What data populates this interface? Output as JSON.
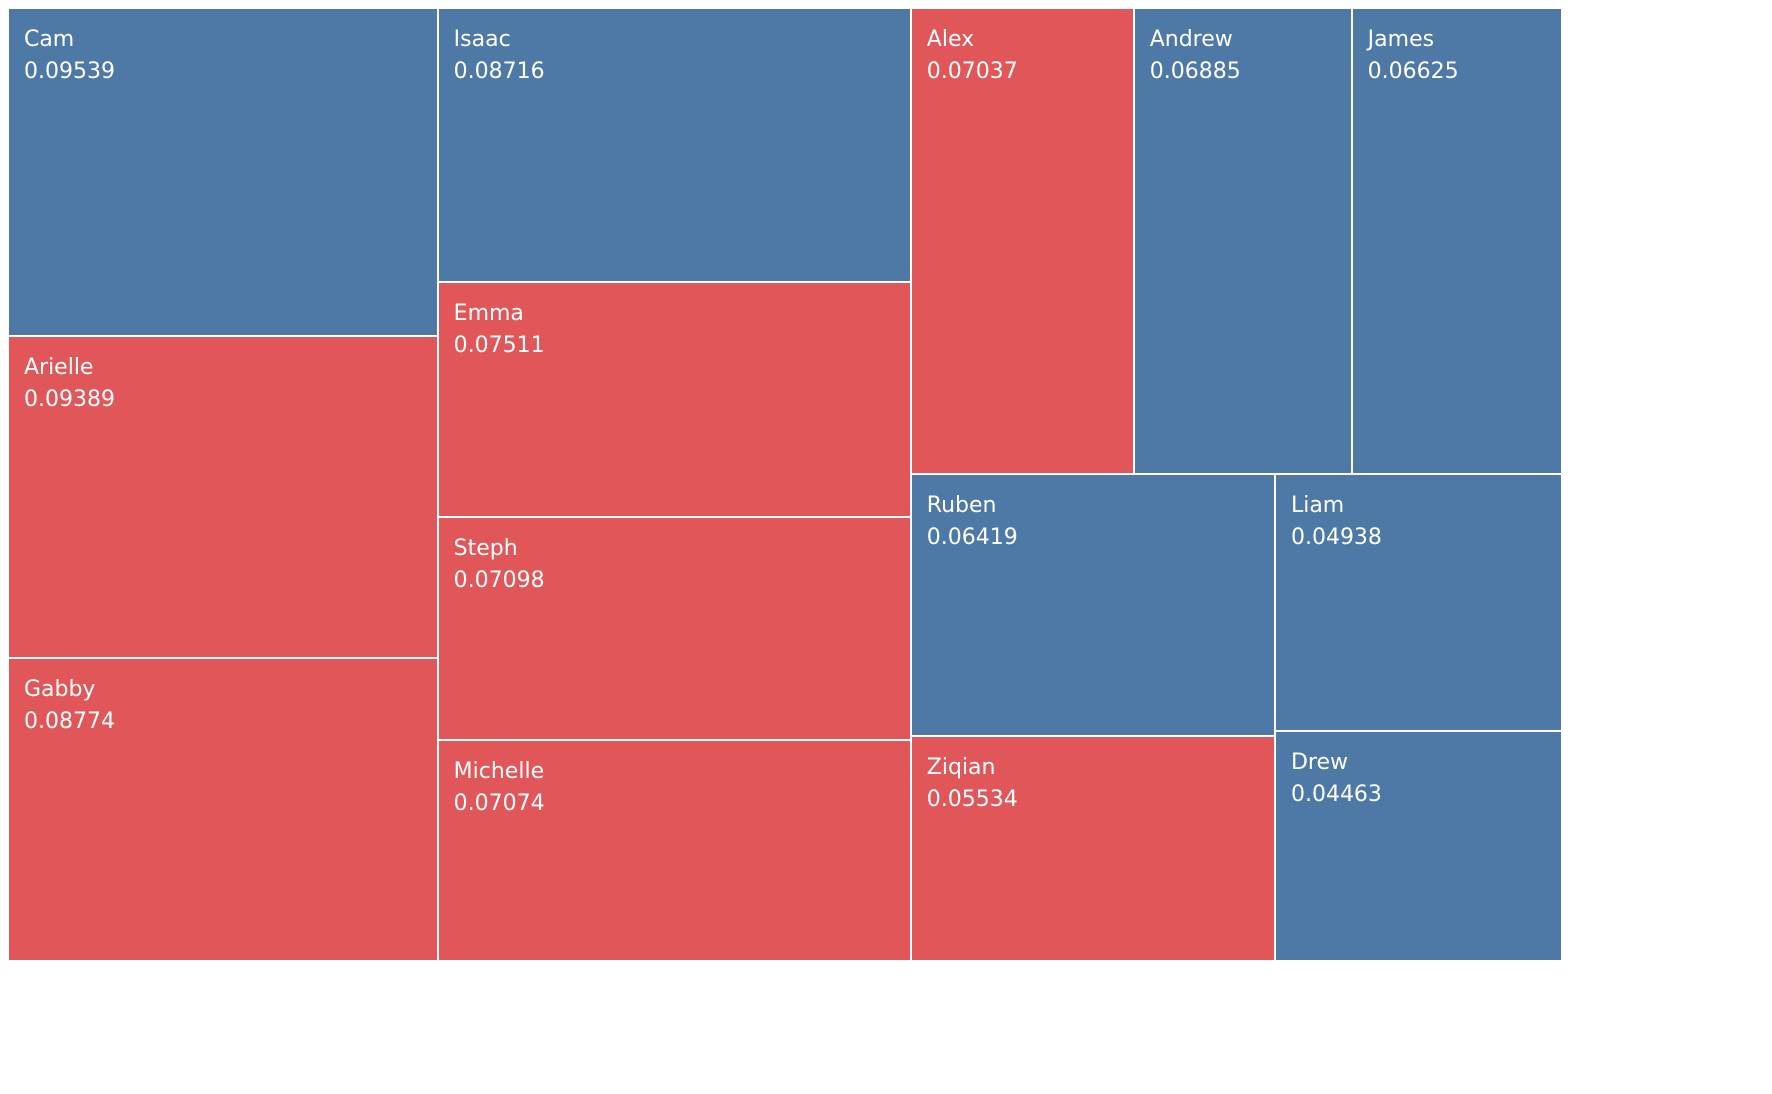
{
  "chart_data": {
    "type": "treemap",
    "title": "",
    "colors": {
      "group_a": "#4e79a7",
      "group_b": "#e15759"
    },
    "items": [
      {
        "name": "Cam",
        "value": "0.09539",
        "group": "group_a"
      },
      {
        "name": "Arielle",
        "value": "0.09389",
        "group": "group_b"
      },
      {
        "name": "Gabby",
        "value": "0.08774",
        "group": "group_b"
      },
      {
        "name": "Isaac",
        "value": "0.08716",
        "group": "group_a"
      },
      {
        "name": "Emma",
        "value": "0.07511",
        "group": "group_b"
      },
      {
        "name": "Steph",
        "value": "0.07098",
        "group": "group_b"
      },
      {
        "name": "Michelle",
        "value": "0.07074",
        "group": "group_b"
      },
      {
        "name": "Alex",
        "value": "0.07037",
        "group": "group_b"
      },
      {
        "name": "Andrew",
        "value": "0.06885",
        "group": "group_a"
      },
      {
        "name": "James",
        "value": "0.06625",
        "group": "group_a"
      },
      {
        "name": "Ruben",
        "value": "0.06419",
        "group": "group_a"
      },
      {
        "name": "Liam",
        "value": "0.04938",
        "group": "group_a"
      },
      {
        "name": "Ziqian",
        "value": "0.05534",
        "group": "group_b"
      },
      {
        "name": "Drew",
        "value": "0.04463",
        "group": "group_a"
      }
    ]
  }
}
